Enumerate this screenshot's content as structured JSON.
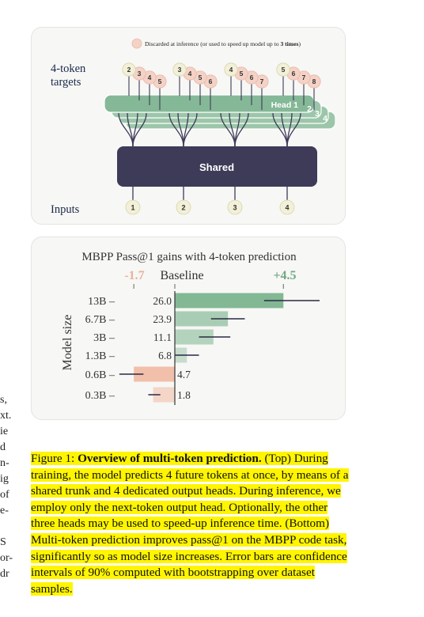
{
  "left_fragments": [
    "s,",
    "xt.",
    "ie",
    "d",
    "n-",
    "ig",
    "of",
    "e-",
    "S",
    "or-",
    "dr"
  ],
  "top_figure": {
    "legend_text": "Discarded at inference (or used to speed up model up to ",
    "legend_bold": "3 times",
    "legend_end": ")",
    "targets_label_line1": "4-token",
    "targets_label_line2": "targets",
    "target_groups": [
      [
        "2",
        "3",
        "4",
        "5"
      ],
      [
        "3",
        "4",
        "5",
        "6"
      ],
      [
        "4",
        "5",
        "6",
        "7"
      ],
      [
        "5",
        "6",
        "7",
        "8"
      ]
    ],
    "heads": [
      "Head 1",
      "2",
      "3",
      "4"
    ],
    "trunk_label": "Shared",
    "inputs_label": "Inputs",
    "inputs": [
      "1",
      "2",
      "3",
      "4"
    ],
    "colors": {
      "head": "#85b897",
      "trunk": "#3d3b58",
      "discarded": "#f4d2c6",
      "token": "#f2f0d8"
    }
  },
  "chart_data": {
    "type": "bar",
    "title": "MBPP Pass@1  gains with 4-token prediction",
    "baseline_label": "Baseline",
    "min_label": "-1.7",
    "max_label": "+4.5",
    "ylabel": "Model size",
    "categories": [
      "13B",
      "6.7B",
      "3B",
      "1.3B",
      "0.6B",
      "0.3B"
    ],
    "baseline_values": [
      "26.0",
      "23.9",
      "11.1",
      "6.8",
      "4.7",
      "1.8"
    ],
    "gains": [
      4.5,
      2.2,
      1.6,
      0.5,
      -1.7,
      -0.9
    ],
    "error_low": [
      3.7,
      1.5,
      1.0,
      0.0,
      -2.3,
      -1.1
    ],
    "error_high": [
      6.0,
      2.9,
      2.3,
      1.0,
      -1.3,
      -0.6
    ],
    "xlim": [
      -1.7,
      4.5
    ],
    "colors": {
      "positive": "#82b894",
      "negative": "#f0b59c",
      "error": "#2a2a44"
    }
  },
  "caption": {
    "prefix": "Figure 1: ",
    "bold": "Overview of multi-token prediction.",
    "text": " (Top) During training, the model predicts 4 future tokens at once, by means of a shared trunk and 4 dedicated output heads. During inference, we employ only the next-token output head. Optionally, the other three heads may be used to speed-up inference time. (Bottom) Multi-token prediction improves pass@1 on the MBPP code task, significantly so as model size increases. Error bars are confidence intervals of 90% computed with bootstrapping over dataset samples."
  }
}
